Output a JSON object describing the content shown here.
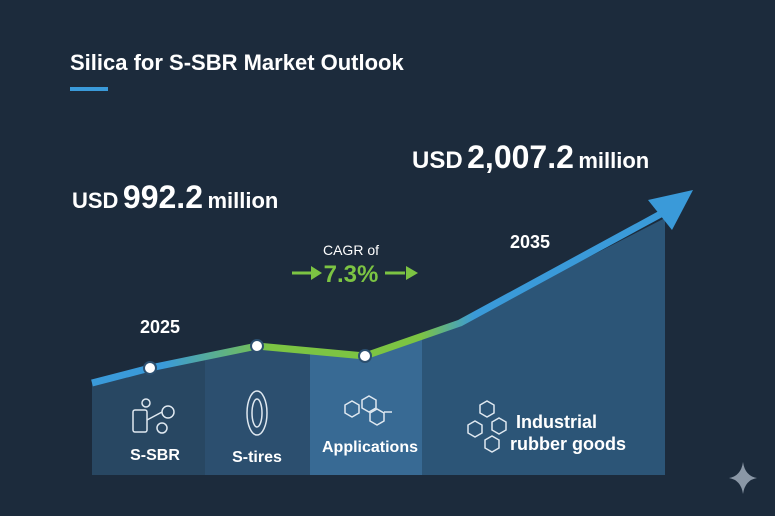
{
  "header": {
    "title": "Silica for S-SBR Market Outlook"
  },
  "start": {
    "currency": "USD",
    "amount": "992.2",
    "unit": "million",
    "year": "2025"
  },
  "end": {
    "currency": "USD",
    "amount": "2,007.2",
    "unit": "million",
    "year": "2035"
  },
  "cagr": {
    "label": "CAGR of",
    "value": "7.3%"
  },
  "segments": [
    {
      "lines": [
        "S-SBR"
      ]
    },
    {
      "lines": [
        "S-tires"
      ]
    },
    {
      "lines": [
        "Applications"
      ]
    },
    {
      "lines": [
        "Industrial",
        "rubber goods"
      ]
    }
  ]
}
